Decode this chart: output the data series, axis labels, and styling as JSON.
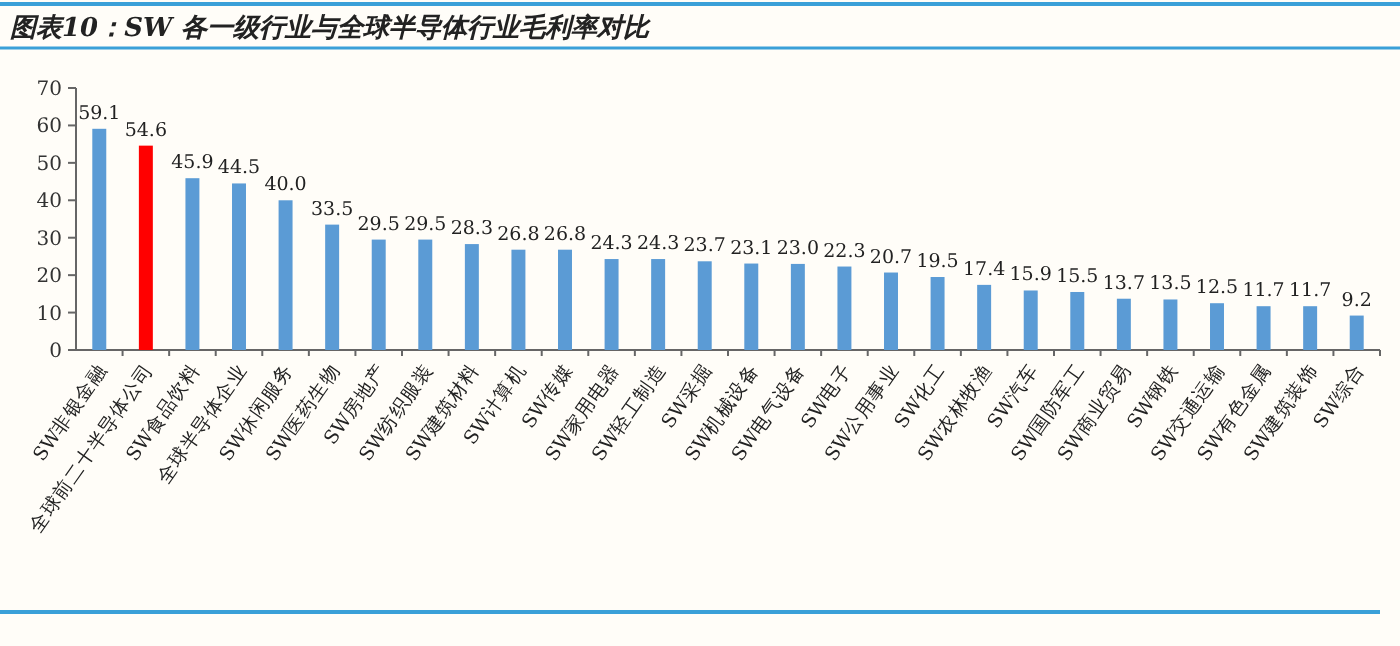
{
  "chart_data": {
    "type": "bar",
    "title": "图表10：SW 各一级行业与全球半导体行业毛利率对比",
    "categories": [
      "SW非银金融",
      "全球前二十半导体公司",
      "SW食品饮料",
      "全球半导体企业",
      "SW休闲服务",
      "SW医药生物",
      "SW房地产",
      "SW纺织服装",
      "SW建筑材料",
      "SW计算机",
      "SW传媒",
      "SW家用电器",
      "SW轻工制造",
      "SW采掘",
      "SW机械设备",
      "SW电气设备",
      "SW电子",
      "SW公用事业",
      "SW化工",
      "SW农林牧渔",
      "SW汽车",
      "SW国防军工",
      "SW商业贸易",
      "SW钢铁",
      "SW交通运输",
      "SW有色金属",
      "SW建筑装饰",
      "SW综合"
    ],
    "values": [
      59.1,
      54.6,
      45.9,
      44.5,
      40.0,
      33.5,
      29.5,
      29.5,
      28.3,
      26.8,
      26.8,
      24.3,
      24.3,
      23.7,
      23.1,
      23.0,
      22.3,
      20.7,
      19.5,
      17.4,
      15.9,
      15.5,
      13.7,
      13.5,
      12.5,
      11.7,
      11.7,
      9.2
    ],
    "value_labels": [
      "59.1",
      "54.6",
      "45.9",
      "44.5",
      "40.0",
      "33.5",
      "29.5",
      "29.5",
      "28.3",
      "26.8",
      "26.8",
      "24.3",
      "24.3",
      "23.7",
      "23.1",
      "23.0",
      "22.3",
      "20.7",
      "19.5",
      "17.4",
      "15.9",
      "15.5",
      "13.7",
      "13.5",
      "12.5",
      "11.7",
      "11.7",
      "9.2"
    ],
    "colors": [
      "#5b9bd5",
      "#ff0000",
      "#5b9bd5",
      "#5b9bd5",
      "#5b9bd5",
      "#5b9bd5",
      "#5b9bd5",
      "#5b9bd5",
      "#5b9bd5",
      "#5b9bd5",
      "#5b9bd5",
      "#5b9bd5",
      "#5b9bd5",
      "#5b9bd5",
      "#5b9bd5",
      "#5b9bd5",
      "#5b9bd5",
      "#5b9bd5",
      "#5b9bd5",
      "#5b9bd5",
      "#5b9bd5",
      "#5b9bd5",
      "#5b9bd5",
      "#5b9bd5",
      "#5b9bd5",
      "#5b9bd5",
      "#5b9bd5",
      "#5b9bd5"
    ],
    "ylim": [
      0,
      70
    ],
    "yticks": [
      0,
      10,
      20,
      30,
      40,
      50,
      60,
      70
    ]
  }
}
